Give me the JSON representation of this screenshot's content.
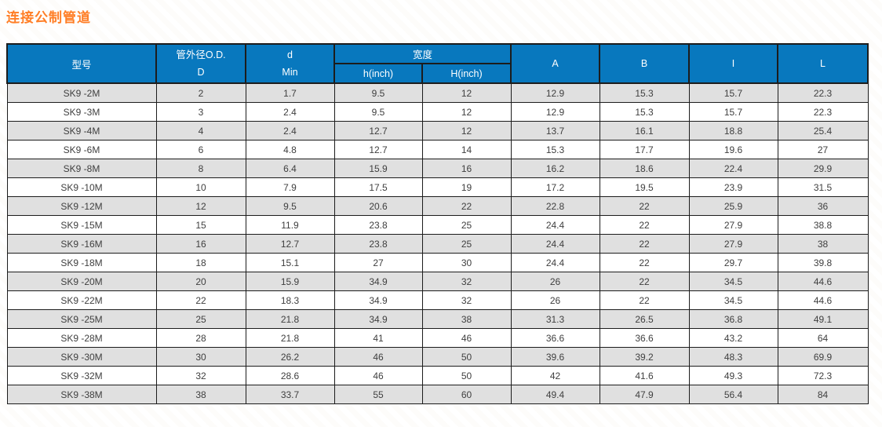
{
  "title": "连接公制管道",
  "colors": {
    "title": "#ff7e26",
    "header_bg": "#0878be",
    "header_fg": "#ffffff",
    "border": "#1c1c1c",
    "stripe_bg": "#e0e0e0",
    "cell_fg": "#3f3f3f"
  },
  "table": {
    "header": {
      "model": "型号",
      "od_line1": "管外径O.D.",
      "od_line2": "D",
      "d_line1": "d",
      "d_line2": "Min",
      "width_group": "宽度",
      "h_small": "h(inch)",
      "h_big": "H(inch)",
      "col_a": "A",
      "col_b": "B",
      "col_i": "I",
      "col_l": "L"
    },
    "columns_order": [
      "型号",
      "管外径O.D. D",
      "d Min",
      "h(inch)",
      "H(inch)",
      "A",
      "B",
      "I",
      "L"
    ],
    "rows": [
      [
        "SK9 -2M",
        "2",
        "1.7",
        "9.5",
        "12",
        "12.9",
        "15.3",
        "15.7",
        "22.3"
      ],
      [
        "SK9 -3M",
        "3",
        "2.4",
        "9.5",
        "12",
        "12.9",
        "15.3",
        "15.7",
        "22.3"
      ],
      [
        "SK9 -4M",
        "4",
        "2.4",
        "12.7",
        "12",
        "13.7",
        "16.1",
        "18.8",
        "25.4"
      ],
      [
        "SK9 -6M",
        "6",
        "4.8",
        "12.7",
        "14",
        "15.3",
        "17.7",
        "19.6",
        "27"
      ],
      [
        "SK9 -8M",
        "8",
        "6.4",
        "15.9",
        "16",
        "16.2",
        "18.6",
        "22.4",
        "29.9"
      ],
      [
        "SK9 -10M",
        "10",
        "7.9",
        "17.5",
        "19",
        "17.2",
        "19.5",
        "23.9",
        "31.5"
      ],
      [
        "SK9 -12M",
        "12",
        "9.5",
        "20.6",
        "22",
        "22.8",
        "22",
        "25.9",
        "36"
      ],
      [
        "SK9 -15M",
        "15",
        "11.9",
        "23.8",
        "25",
        "24.4",
        "22",
        "27.9",
        "38.8"
      ],
      [
        "SK9 -16M",
        "16",
        "12.7",
        "23.8",
        "25",
        "24.4",
        "22",
        "27.9",
        "38"
      ],
      [
        "SK9 -18M",
        "18",
        "15.1",
        "27",
        "30",
        "24.4",
        "22",
        "29.7",
        "39.8"
      ],
      [
        "SK9 -20M",
        "20",
        "15.9",
        "34.9",
        "32",
        "26",
        "22",
        "34.5",
        "44.6"
      ],
      [
        "SK9 -22M",
        "22",
        "18.3",
        "34.9",
        "32",
        "26",
        "22",
        "34.5",
        "44.6"
      ],
      [
        "SK9 -25M",
        "25",
        "21.8",
        "34.9",
        "38",
        "31.3",
        "26.5",
        "36.8",
        "49.1"
      ],
      [
        "SK9 -28M",
        "28",
        "21.8",
        "41",
        "46",
        "36.6",
        "36.6",
        "43.2",
        "64"
      ],
      [
        "SK9 -30M",
        "30",
        "26.2",
        "46",
        "50",
        "39.6",
        "39.2",
        "48.3",
        "69.9"
      ],
      [
        "SK9 -32M",
        "32",
        "28.6",
        "46",
        "50",
        "42",
        "41.6",
        "49.3",
        "72.3"
      ],
      [
        "SK9 -38M",
        "38",
        "33.7",
        "55",
        "60",
        "49.4",
        "47.9",
        "56.4",
        "84"
      ]
    ]
  }
}
